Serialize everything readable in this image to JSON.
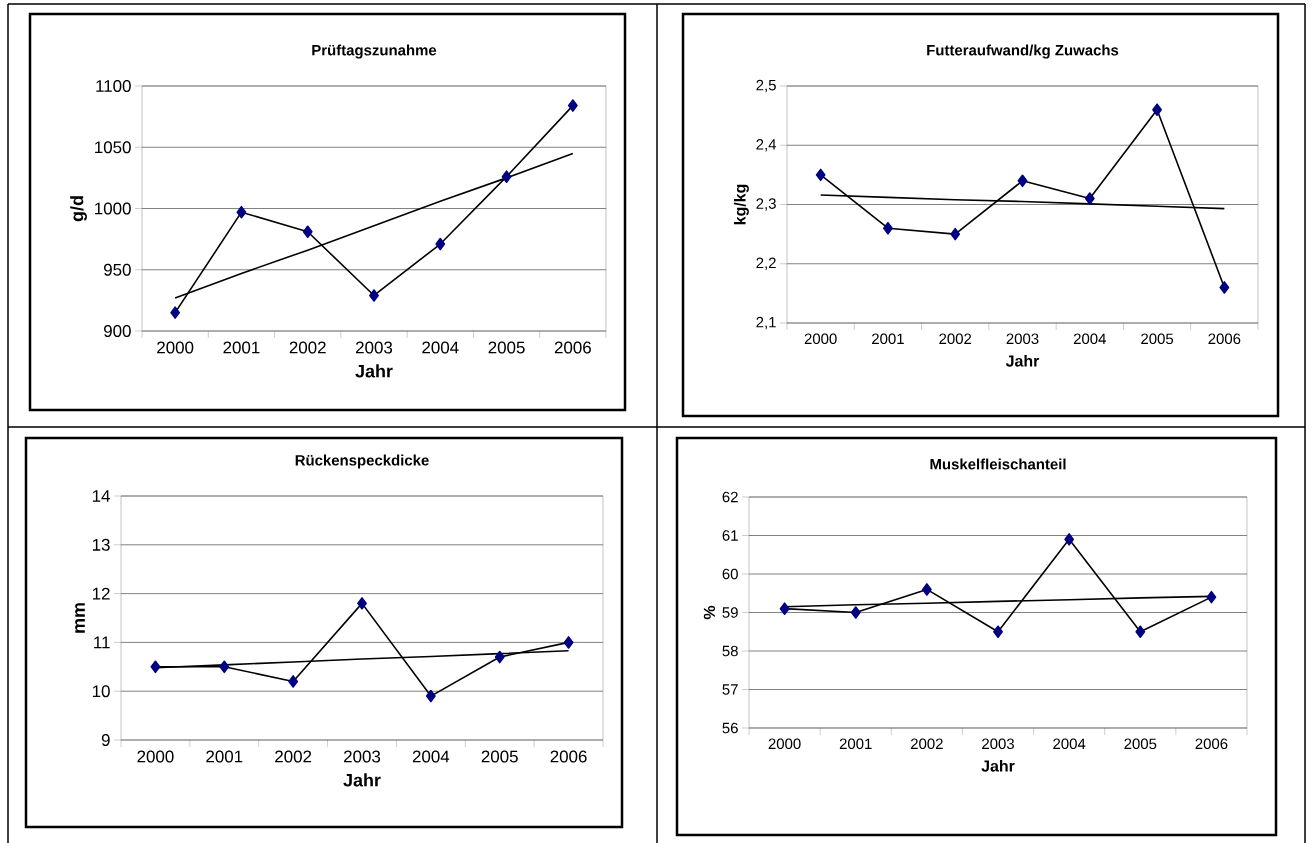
{
  "chart_data": [
    {
      "type": "line",
      "title": "Prüftagszunahme",
      "xlabel": "Jahr",
      "ylabel": "g/d",
      "categories": [
        "2000",
        "2001",
        "2002",
        "2003",
        "2004",
        "2005",
        "2006"
      ],
      "ylim": [
        900,
        1100
      ],
      "yticks": [
        900,
        950,
        1000,
        1050,
        1100
      ],
      "grid": "y",
      "series": [
        {
          "color": "#000080",
          "marker": "diamond",
          "values": [
            915,
            997,
            981,
            929,
            971,
            1026,
            1084
          ]
        },
        {
          "color": "#000000",
          "marker": "none",
          "values": [
            927,
            947,
            966,
            986,
            1006,
            1025,
            1045
          ]
        }
      ]
    },
    {
      "type": "line",
      "title": "Futteraufwand/kg Zuwachs",
      "xlabel": "Jahr",
      "ylabel": "kg/kg",
      "categories": [
        "2000",
        "2001",
        "2002",
        "2003",
        "2004",
        "2005",
        "2006"
      ],
      "ylim": [
        2.1,
        2.5
      ],
      "yticks": [
        {
          "value": 2.1,
          "label": "2,1"
        },
        {
          "value": 2.2,
          "label": "2,2"
        },
        {
          "value": 2.3,
          "label": "2,3"
        },
        {
          "value": 2.4,
          "label": "2,4"
        },
        {
          "value": 2.5,
          "label": "2,5"
        }
      ],
      "grid": "y",
      "series": [
        {
          "color": "#000080",
          "marker": "diamond",
          "values": [
            2.35,
            2.26,
            2.25,
            2.34,
            2.31,
            2.46,
            2.16
          ]
        },
        {
          "color": "#000000",
          "marker": "none",
          "values": [
            2.316,
            2.312,
            2.308,
            2.305,
            2.301,
            2.297,
            2.293
          ]
        }
      ]
    },
    {
      "type": "line",
      "title": "Rückenspeckdicke",
      "xlabel": "Jahr",
      "ylabel": "mm",
      "categories": [
        "2000",
        "2001",
        "2002",
        "2003",
        "2004",
        "2005",
        "2006"
      ],
      "ylim": [
        9,
        14
      ],
      "yticks": [
        9,
        10,
        11,
        12,
        13,
        14
      ],
      "grid": "y",
      "series": [
        {
          "color": "#000080",
          "marker": "diamond",
          "values": [
            10.5,
            10.5,
            10.2,
            11.8,
            9.9,
            10.7,
            11.0
          ]
        },
        {
          "color": "#000000",
          "marker": "none",
          "values": [
            10.48,
            10.54,
            10.6,
            10.66,
            10.71,
            10.77,
            10.83
          ]
        }
      ]
    },
    {
      "type": "line",
      "title": "Muskelfleischanteil",
      "xlabel": "Jahr",
      "ylabel": "%",
      "categories": [
        "2000",
        "2001",
        "2002",
        "2003",
        "2004",
        "2005",
        "2006"
      ],
      "ylim": [
        56,
        62
      ],
      "yticks": [
        56,
        57,
        58,
        59,
        60,
        61,
        62
      ],
      "grid": "y",
      "series": [
        {
          "color": "#000080",
          "marker": "diamond",
          "values": [
            59.1,
            59.0,
            59.6,
            58.5,
            60.9,
            58.5,
            59.4
          ]
        },
        {
          "color": "#000000",
          "marker": "none",
          "values": [
            59.15,
            59.2,
            59.24,
            59.29,
            59.33,
            59.38,
            59.42
          ]
        }
      ]
    }
  ]
}
